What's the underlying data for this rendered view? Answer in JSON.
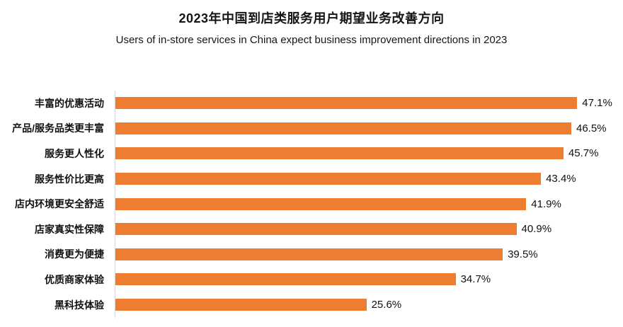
{
  "header": {
    "title": "2023年中国到店类服务用户期望业务改善方向",
    "subtitle": "Users of in-store services in China expect business improvement directions in 2023"
  },
  "chart_data": {
    "type": "bar",
    "orientation": "horizontal",
    "title": "2023年中国到店类服务用户期望业务改善方向",
    "subtitle": "Users of in-store services in China expect business improvement directions in 2023",
    "categories": [
      "丰富的优惠活动",
      "产品/服务品类更丰富",
      "服务更人性化",
      "服务性价比更高",
      "店内环境更安全舒适",
      "店家真实性保障",
      "消费更为便捷",
      "优质商家体验",
      "黑科技体验"
    ],
    "values": [
      47.1,
      46.5,
      45.7,
      43.4,
      41.9,
      40.9,
      39.5,
      34.7,
      25.6
    ],
    "value_labels": [
      "47.1%",
      "46.5%",
      "45.7%",
      "43.4%",
      "41.9%",
      "40.9%",
      "39.5%",
      "34.7%",
      "25.6%"
    ],
    "xlabel": "",
    "ylabel": "",
    "xlim": [
      0,
      50
    ],
    "grid": false,
    "legend": false,
    "data_labels": "outside-end",
    "bar_color": "#ED7D31",
    "axis_line_color": "#D9D9D9",
    "text_color": "#111111"
  }
}
